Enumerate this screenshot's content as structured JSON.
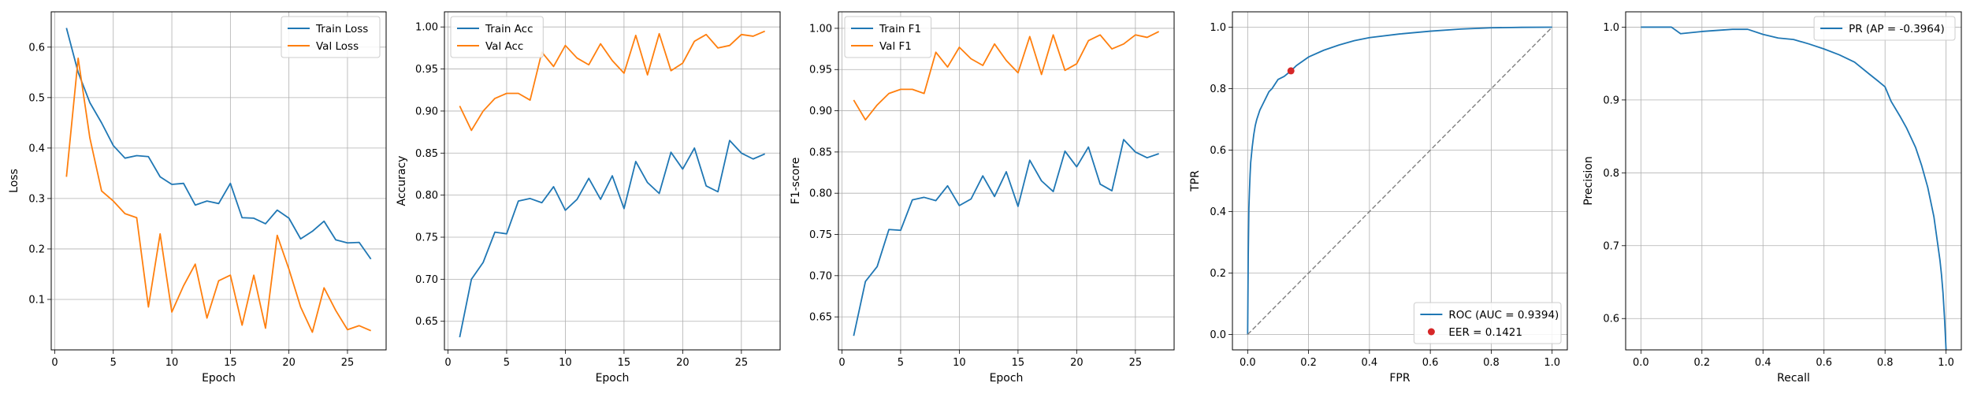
{
  "chart_data": [
    {
      "type": "line",
      "xlabel": "Epoch",
      "ylabel": "Loss",
      "xlim": [
        -0.3,
        28.3
      ],
      "ylim": [
        0.0,
        0.67
      ],
      "xticks": [
        0,
        5,
        10,
        15,
        20,
        25
      ],
      "yticks": [
        0.1,
        0.2,
        0.3,
        0.4,
        0.5,
        0.6
      ],
      "ytick_decimals": 1,
      "grid": true,
      "legend_position": "upper right",
      "series": [
        {
          "name": "Train Loss",
          "color": "#1f77b4",
          "x": [
            1,
            2,
            3,
            4,
            5,
            6,
            7,
            8,
            9,
            10,
            11,
            12,
            13,
            14,
            15,
            16,
            17,
            18,
            19,
            20,
            21,
            22,
            23,
            24,
            25,
            26,
            27
          ],
          "y": [
            0.638,
            0.55,
            0.49,
            0.45,
            0.405,
            0.38,
            0.385,
            0.383,
            0.343,
            0.328,
            0.33,
            0.287,
            0.295,
            0.29,
            0.33,
            0.262,
            0.261,
            0.25,
            0.277,
            0.261,
            0.22,
            0.235,
            0.255,
            0.218,
            0.212,
            0.213,
            0.18
          ]
        },
        {
          "name": "Val Loss",
          "color": "#ff7f0e",
          "x": [
            1,
            2,
            3,
            4,
            5,
            6,
            7,
            8,
            9,
            10,
            11,
            12,
            13,
            14,
            15,
            16,
            17,
            18,
            19,
            20,
            21,
            22,
            23,
            24,
            25,
            26,
            27
          ],
          "y": [
            0.343,
            0.578,
            0.42,
            0.315,
            0.295,
            0.27,
            0.262,
            0.085,
            0.23,
            0.075,
            0.127,
            0.17,
            0.063,
            0.137,
            0.148,
            0.049,
            0.148,
            0.043,
            0.227,
            0.16,
            0.085,
            0.035,
            0.123,
            0.078,
            0.04,
            0.048,
            0.038
          ]
        }
      ]
    },
    {
      "type": "line",
      "xlabel": "Epoch",
      "ylabel": "Accuracy",
      "xlim": [
        -0.3,
        28.3
      ],
      "ylim": [
        0.616,
        1.018
      ],
      "xticks": [
        0,
        5,
        10,
        15,
        20,
        25
      ],
      "yticks": [
        0.65,
        0.7,
        0.75,
        0.8,
        0.85,
        0.9,
        0.95,
        1.0
      ],
      "ytick_decimals": 2,
      "grid": true,
      "legend_position": "upper left",
      "series": [
        {
          "name": "Train Acc",
          "color": "#1f77b4",
          "x": [
            1,
            2,
            3,
            4,
            5,
            6,
            7,
            8,
            9,
            10,
            11,
            12,
            13,
            14,
            15,
            16,
            17,
            18,
            19,
            20,
            21,
            22,
            23,
            24,
            25,
            26,
            27
          ],
          "y": [
            0.631,
            0.7,
            0.72,
            0.756,
            0.754,
            0.793,
            0.796,
            0.791,
            0.81,
            0.782,
            0.795,
            0.82,
            0.795,
            0.823,
            0.784,
            0.84,
            0.815,
            0.802,
            0.851,
            0.831,
            0.856,
            0.811,
            0.804,
            0.865,
            0.85,
            0.843,
            0.849
          ]
        },
        {
          "name": "Val Acc",
          "color": "#ff7f0e",
          "x": [
            1,
            2,
            3,
            4,
            5,
            6,
            7,
            8,
            9,
            10,
            11,
            12,
            13,
            14,
            15,
            16,
            17,
            18,
            19,
            20,
            21,
            22,
            23,
            24,
            25,
            26,
            27
          ],
          "y": [
            0.906,
            0.877,
            0.9,
            0.915,
            0.921,
            0.921,
            0.913,
            0.97,
            0.953,
            0.978,
            0.963,
            0.955,
            0.98,
            0.96,
            0.945,
            0.99,
            0.943,
            0.992,
            0.948,
            0.957,
            0.983,
            0.991,
            0.975,
            0.978,
            0.991,
            0.989,
            0.995
          ]
        }
      ]
    },
    {
      "type": "line",
      "xlabel": "Epoch",
      "ylabel": "F1-score",
      "xlim": [
        -0.3,
        28.3
      ],
      "ylim": [
        0.61,
        1.02
      ],
      "xticks": [
        0,
        5,
        10,
        15,
        20,
        25
      ],
      "yticks": [
        0.65,
        0.7,
        0.75,
        0.8,
        0.85,
        0.9,
        0.95,
        1.0
      ],
      "ytick_decimals": 2,
      "grid": true,
      "legend_position": "upper left",
      "series": [
        {
          "name": "Train F1",
          "color": "#1f77b4",
          "x": [
            1,
            2,
            3,
            4,
            5,
            6,
            7,
            8,
            9,
            10,
            11,
            12,
            13,
            14,
            15,
            16,
            17,
            18,
            19,
            20,
            21,
            22,
            23,
            24,
            25,
            26,
            27
          ],
          "y": [
            0.627,
            0.693,
            0.711,
            0.756,
            0.755,
            0.792,
            0.795,
            0.791,
            0.809,
            0.785,
            0.793,
            0.821,
            0.796,
            0.826,
            0.784,
            0.84,
            0.815,
            0.802,
            0.851,
            0.832,
            0.856,
            0.811,
            0.803,
            0.865,
            0.85,
            0.843,
            0.848
          ]
        },
        {
          "name": "Val F1",
          "color": "#ff7f0e",
          "x": [
            1,
            2,
            3,
            4,
            5,
            6,
            7,
            8,
            9,
            10,
            11,
            12,
            13,
            14,
            15,
            16,
            17,
            18,
            19,
            20,
            21,
            22,
            23,
            24,
            25,
            26,
            27
          ],
          "y": [
            0.913,
            0.889,
            0.907,
            0.921,
            0.926,
            0.926,
            0.921,
            0.971,
            0.953,
            0.977,
            0.963,
            0.955,
            0.981,
            0.961,
            0.946,
            0.99,
            0.944,
            0.992,
            0.949,
            0.957,
            0.985,
            0.992,
            0.975,
            0.981,
            0.992,
            0.989,
            0.996
          ]
        }
      ]
    },
    {
      "type": "line",
      "xlabel": "FPR",
      "ylabel": "TPR",
      "xlim": [
        -0.05,
        1.05
      ],
      "ylim": [
        -0.05,
        1.05
      ],
      "xticks": [
        0.0,
        0.2,
        0.4,
        0.6,
        0.8,
        1.0
      ],
      "yticks": [
        0.0,
        0.2,
        0.4,
        0.6,
        0.8,
        1.0
      ],
      "xtick_decimals": 1,
      "ytick_decimals": 1,
      "grid": true,
      "legend_position": "lower right",
      "series": [
        {
          "name": "ROC (AUC = 0.9394)",
          "color": "#1f77b4",
          "x": [
            0.0,
            0.002,
            0.004,
            0.006,
            0.008,
            0.01,
            0.015,
            0.02,
            0.025,
            0.03,
            0.04,
            0.05,
            0.06,
            0.07,
            0.08,
            0.1,
            0.12,
            0.1421,
            0.16,
            0.2,
            0.25,
            0.3,
            0.35,
            0.4,
            0.5,
            0.6,
            0.7,
            0.8,
            0.9,
            1.0
          ],
          "y": [
            0.0,
            0.26,
            0.41,
            0.47,
            0.52,
            0.56,
            0.61,
            0.65,
            0.68,
            0.7,
            0.73,
            0.75,
            0.77,
            0.79,
            0.8,
            0.83,
            0.84,
            0.8579,
            0.875,
            0.903,
            0.925,
            0.942,
            0.956,
            0.966,
            0.978,
            0.987,
            0.994,
            0.998,
            0.9995,
            1.0
          ]
        },
        {
          "name": "",
          "color": "#7f7f7f",
          "dashed": true,
          "x": [
            0,
            1
          ],
          "y": [
            0,
            1
          ]
        }
      ],
      "points": [
        {
          "name": "EER = 0.1421",
          "color": "#d62728",
          "x": 0.1421,
          "y": 0.8579
        }
      ]
    },
    {
      "type": "line",
      "xlabel": "Recall",
      "ylabel": "Precision",
      "xlim": [
        -0.05,
        1.05
      ],
      "ylim": [
        0.557,
        1.021
      ],
      "xticks": [
        0.0,
        0.2,
        0.4,
        0.6,
        0.8,
        1.0
      ],
      "yticks": [
        0.6,
        0.7,
        0.8,
        0.9,
        1.0
      ],
      "xtick_decimals": 1,
      "ytick_decimals": 1,
      "grid": true,
      "legend_position": "upper right",
      "series": [
        {
          "name": "PR (AP = -0.3964)",
          "color": "#1f77b4",
          "x": [
            0.0,
            0.05,
            0.1,
            0.13,
            0.2,
            0.3,
            0.35,
            0.4,
            0.45,
            0.5,
            0.55,
            0.6,
            0.65,
            0.7,
            0.75,
            0.78,
            0.8,
            0.82,
            0.85,
            0.87,
            0.9,
            0.92,
            0.94,
            0.96,
            0.97,
            0.98,
            0.985,
            0.99,
            0.995,
            1.0
          ],
          "y": [
            1.0,
            1.0,
            1.0,
            0.991,
            0.994,
            0.997,
            0.997,
            0.99,
            0.985,
            0.983,
            0.977,
            0.97,
            0.962,
            0.952,
            0.935,
            0.925,
            0.918,
            0.898,
            0.877,
            0.862,
            0.835,
            0.81,
            0.78,
            0.74,
            0.71,
            0.68,
            0.66,
            0.635,
            0.6,
            0.557
          ]
        }
      ]
    }
  ]
}
